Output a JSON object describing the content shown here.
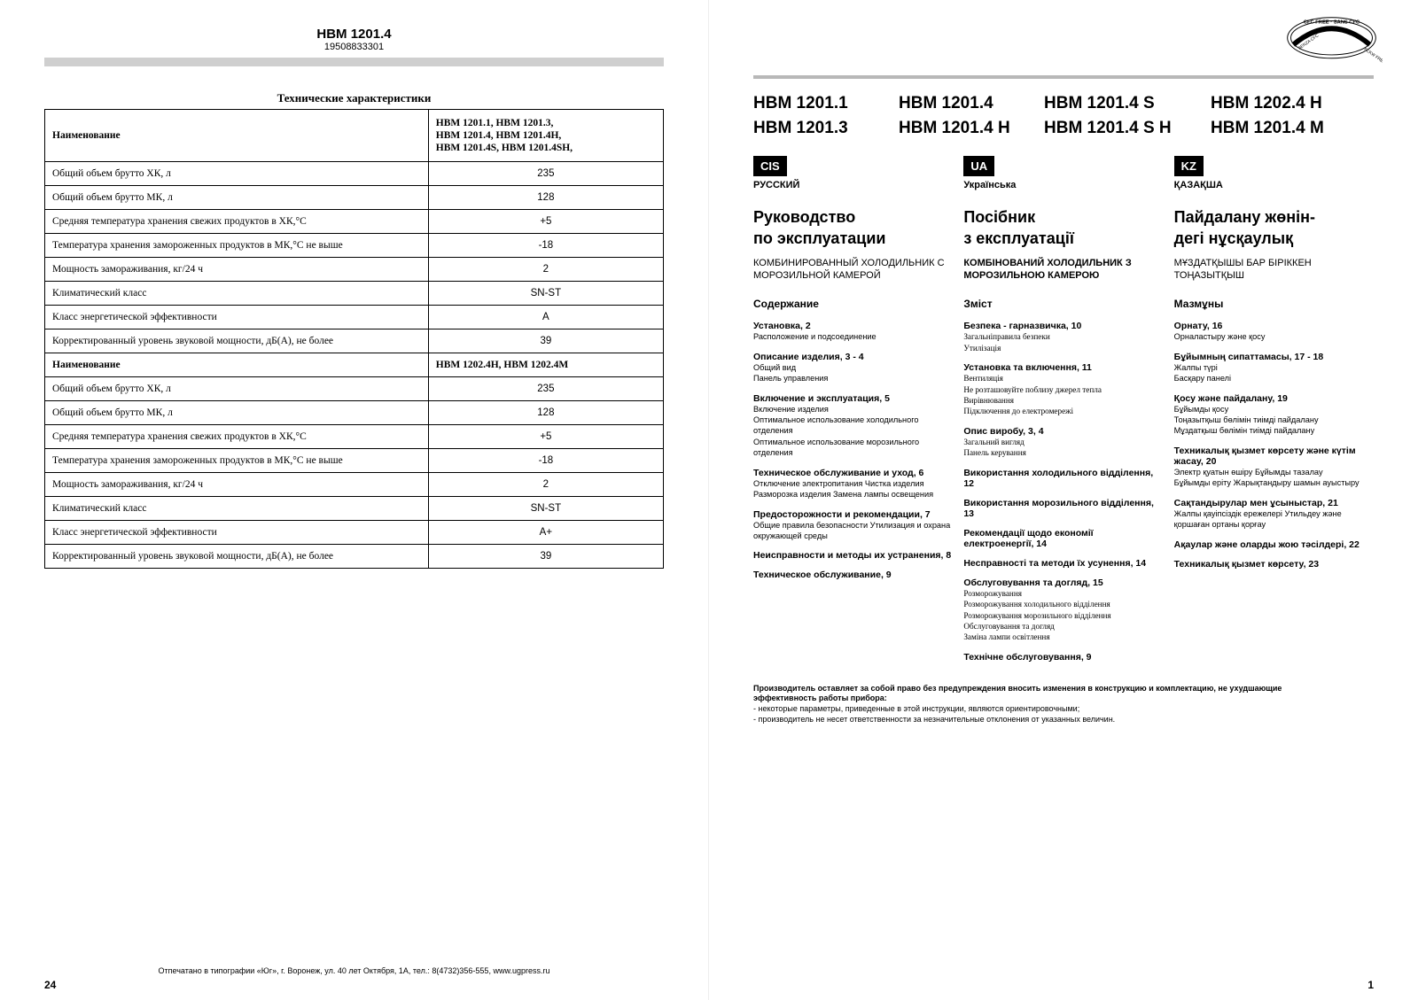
{
  "left": {
    "model": "HBM 1201.4",
    "serial": "19508833301",
    "tech_title": "Технические характеристики",
    "header_name": "Наименование",
    "models1_l1": "HBM 1201.1, HBM 1201.3,",
    "models1_l2": "HBM 1201.4,  HBM 1201.4H,",
    "models1_l3": "HBM 1201.4S, HBM 1201.4SH,",
    "models2": "HBM 1202.4H,  HBM 1202.4M",
    "rows1": [
      {
        "n": "Общий объем брутто ХК, л",
        "v": "235"
      },
      {
        "n": "Общий объем брутто МК, л",
        "v": "128"
      },
      {
        "n": "Средняя температура хранения свежих продуктов в ХК,°С",
        "v": "+5"
      },
      {
        "n": "Температура хранения замороженных продуктов в МК,°С не выше",
        "v": "-18"
      },
      {
        "n": "Мощность замораживания, кг/24 ч",
        "v": "2"
      },
      {
        "n": "Климатический класс",
        "v": "SN-ST"
      },
      {
        "n": "Класс энергетической эффективности",
        "v": "A"
      },
      {
        "n": "Корректированный уровень звуковой мощности, дБ(А), не более",
        "v": "39"
      }
    ],
    "rows2": [
      {
        "n": "Общий объем брутто ХК, л",
        "v": "235"
      },
      {
        "n": "Общий объем брутто МК, л",
        "v": "128"
      },
      {
        "n": "Средняя температура хранения свежих продуктов в ХК,°С",
        "v": "+5"
      },
      {
        "n": "Температура хранения замороженных продуктов в МК,°С не выше",
        "v": "-18"
      },
      {
        "n": "Мощность замораживания, кг/24 ч",
        "v": "2"
      },
      {
        "n": "Климатический класс",
        "v": "SN-ST"
      },
      {
        "n": "Класс энергетической эффективности",
        "v": "A+"
      },
      {
        "n": "Корректированный уровень звуковой мощности, дБ(А), не более",
        "v": "39"
      }
    ],
    "footer": "Отпечатано в типографии «Юг», г. Воронеж, ул. 40 лет Октября, 1А, тел.: 8(4732)356-555, www.ugpress.ru",
    "pagenum": "24"
  },
  "right": {
    "models_grid": [
      "HBM 1201.1",
      "HBM 1201.4",
      "HBM 1201.4 S",
      "HBM 1202.4 H",
      "HBM 1201.3",
      "HBM 1201.4 H",
      "HBM 1201.4 S H",
      "HBM 1201.4 M"
    ],
    "cis": {
      "badge": "CIS",
      "lang": "РУССКИЙ",
      "title1": "Руководство",
      "title2": "по эксплуатации",
      "sub": "КОМБИНИРОВАННЫЙ ХОЛОДИЛЬНИК С МОРОЗИЛЬНОЙ КАМЕРОЙ",
      "toc": "Содержание",
      "sections": [
        {
          "t": "Установка, 2",
          "d": "Расположение и подсоединение"
        },
        {
          "t": "Описание изделия, 3 - 4",
          "d": "Общий вид\nПанель управления"
        },
        {
          "t": "Включение и эксплуатация, 5",
          "d": "Включение изделия\nОптимальное использование холодильного отделения\nОптимальное использование морозильного отделения"
        },
        {
          "t": "Техническое обслуживание и уход, 6",
          "d": "Отключение электропитания Чистка изделия Разморозка изделия Замена лампы освещения"
        },
        {
          "t": "Предосторожности и рекомендации, 7",
          "d": "Общие правила безопасности Утилизация и охрана окружающей среды"
        },
        {
          "t": "Неисправности и методы их устранения, 8",
          "d": ""
        },
        {
          "t": "Техническое обслуживание, 9",
          "d": ""
        }
      ]
    },
    "ua": {
      "badge": "UA",
      "lang": "Українська",
      "title1": "Посібник",
      "title2": "з експлуатації",
      "sub": "КОМБІНОВАНИЙ ХОЛОДИЛЬНИК З МОРОЗИЛЬНОЮ КАМЕРОЮ",
      "toc": "Зміст",
      "sections": [
        {
          "t": "Безпека -  гарназвичка, 10",
          "d": "Загальніправила безпеки\nУтилізація"
        },
        {
          "t": "Установка та включення, 11",
          "d": "Вентиляція\nНе розташовуйте поблизу джерел тепла\nВирівнювання\nПідключення до електромережі"
        },
        {
          "t": "Опис виробу, 3, 4",
          "d": " Загальний вигляд\n Панель керування"
        },
        {
          "t": "Використання холодильного відділення, 12",
          "d": ""
        },
        {
          "t": "Використання морозильного відділення, 13",
          "d": ""
        },
        {
          "t": "Рекомендації щодо економії електроенергії, 14",
          "d": ""
        },
        {
          "t": "Несправності та методи їх усунення, 14",
          "d": ""
        },
        {
          "t": "Обслуговування та догляд, 15",
          "d": "Розморожування\nРозморожування холодильного відділення\nРозморожування морозильного відділення\nОбслуговування та догляд\nЗаміна лампи освітлення"
        },
        {
          "t": "Технічне обслуговування, 9",
          "d": ""
        }
      ]
    },
    "kz": {
      "badge": "KZ",
      "lang": "ҚАЗАҚША",
      "title1": "Пайдалану жөнін-",
      "title2": "дегі нұсқаулық",
      "sub": "МҰЗДАТҚЫШЫ БАР БІРІККЕН ТОҢАЗЫТҚЫШ",
      "toc": "Мазмұны",
      "sections": [
        {
          "t": "Орнату, 16",
          "d": "Орналастыру және қосу"
        },
        {
          "t": "Бұйымның сипаттамасы, 17 - 18",
          "d": "Жалпы түрі\nБасқару панелі"
        },
        {
          "t": "Қосу және пайдалану, 19",
          "d": "Бұйымды қосу\nТоңазытқыш бөлімін тиімді пайдалану\nМұздатқыш бөлімін тиімді пайдалану"
        },
        {
          "t": "Техникалық қызмет көрсету және күтім жасау, 20",
          "d": "Электр қуатын өшіру Бұйымды тазалау\nБұйымды еріту Жарықтандыру шамын ауыстыру"
        },
        {
          "t": "Сақтандырулар мен ұсыныстар, 21",
          "d": "Жалпы қауіпсіздік ережелері Утильдеу және қоршаған ортаны қорғау"
        },
        {
          "t": "Ақаулар және оларды жою  тәсілдері, 22",
          "d": ""
        },
        {
          "t": "Техникалық қызмет көрсету, 23",
          "d": ""
        }
      ]
    },
    "disclaimer": {
      "b1": "Производитель оставляет за собой право без предупреждения вносить изменения в конструкцию и комплектацию, не ухудшающие эффективность работы прибора:",
      "l1": "   - некоторые параметры, приведенные в этой инструкции, являются ориентировочными;",
      "l2": "   - производитель не несет ответственности за незначительные отклонения от указанных величин."
    },
    "pagenum": "1"
  }
}
